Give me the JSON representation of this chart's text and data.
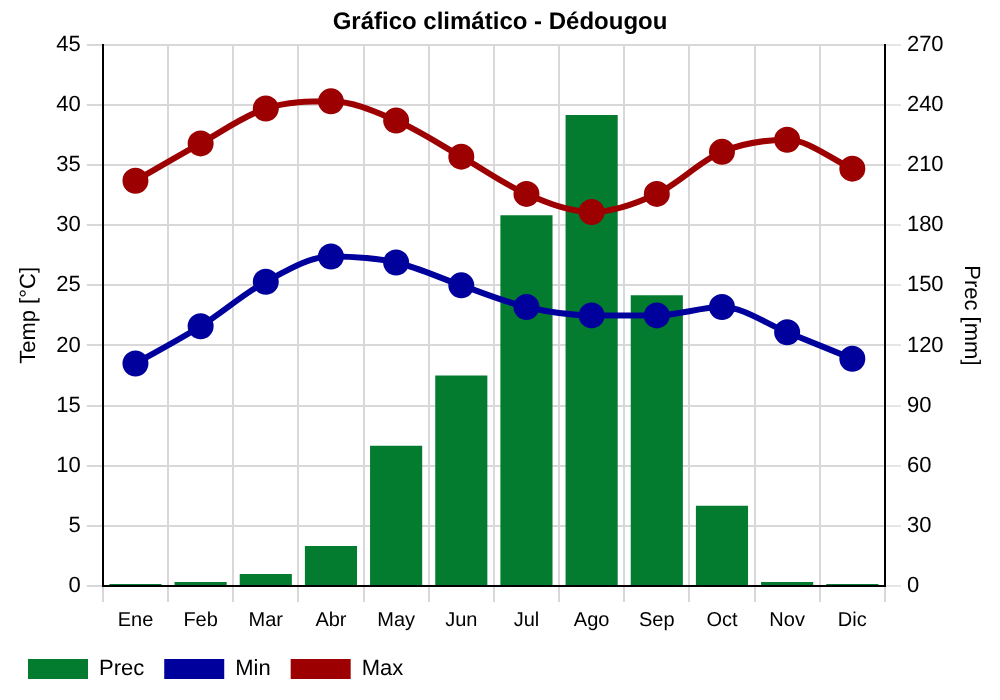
{
  "chart_data": {
    "type": "bar",
    "title": "Gráfico climático - Dédougou",
    "ylabel": "Temp [°C]",
    "y2label": "Prec [mm]",
    "categories": [
      "Ene",
      "Feb",
      "Mar",
      "Abr",
      "May",
      "Jun",
      "Jul",
      "Ago",
      "Sep",
      "Oct",
      "Nov",
      "Dic"
    ],
    "series": [
      {
        "name": "Prec",
        "axis": "y2",
        "color": "#047c30",
        "values": [
          1,
          2,
          6,
          20,
          70,
          105,
          185,
          235,
          145,
          40,
          2,
          1
        ]
      },
      {
        "name": "Min",
        "type": "line",
        "axis": "y",
        "color": "#00009c",
        "values": [
          18.5,
          21.6,
          25.3,
          27.4,
          26.9,
          25,
          23.2,
          22.5,
          22.5,
          23.2,
          21.1,
          18.9
        ]
      },
      {
        "name": "Max",
        "type": "line",
        "axis": "y",
        "color": "#9c0000",
        "values": [
          33.7,
          36.8,
          39.7,
          40.3,
          38.7,
          35.7,
          32.6,
          31.1,
          32.6,
          36.1,
          37.1,
          34.7
        ]
      }
    ],
    "ylim": [
      0,
      45
    ],
    "yticks": [
      0,
      5,
      10,
      15,
      20,
      25,
      30,
      35,
      40,
      45
    ],
    "y2lim": [
      0,
      270
    ],
    "y2ticks": [
      0,
      30,
      60,
      90,
      120,
      150,
      180,
      210,
      240,
      270
    ],
    "grid": true,
    "legend": "bottom left",
    "marker": "circle",
    "line_style": "solid"
  }
}
